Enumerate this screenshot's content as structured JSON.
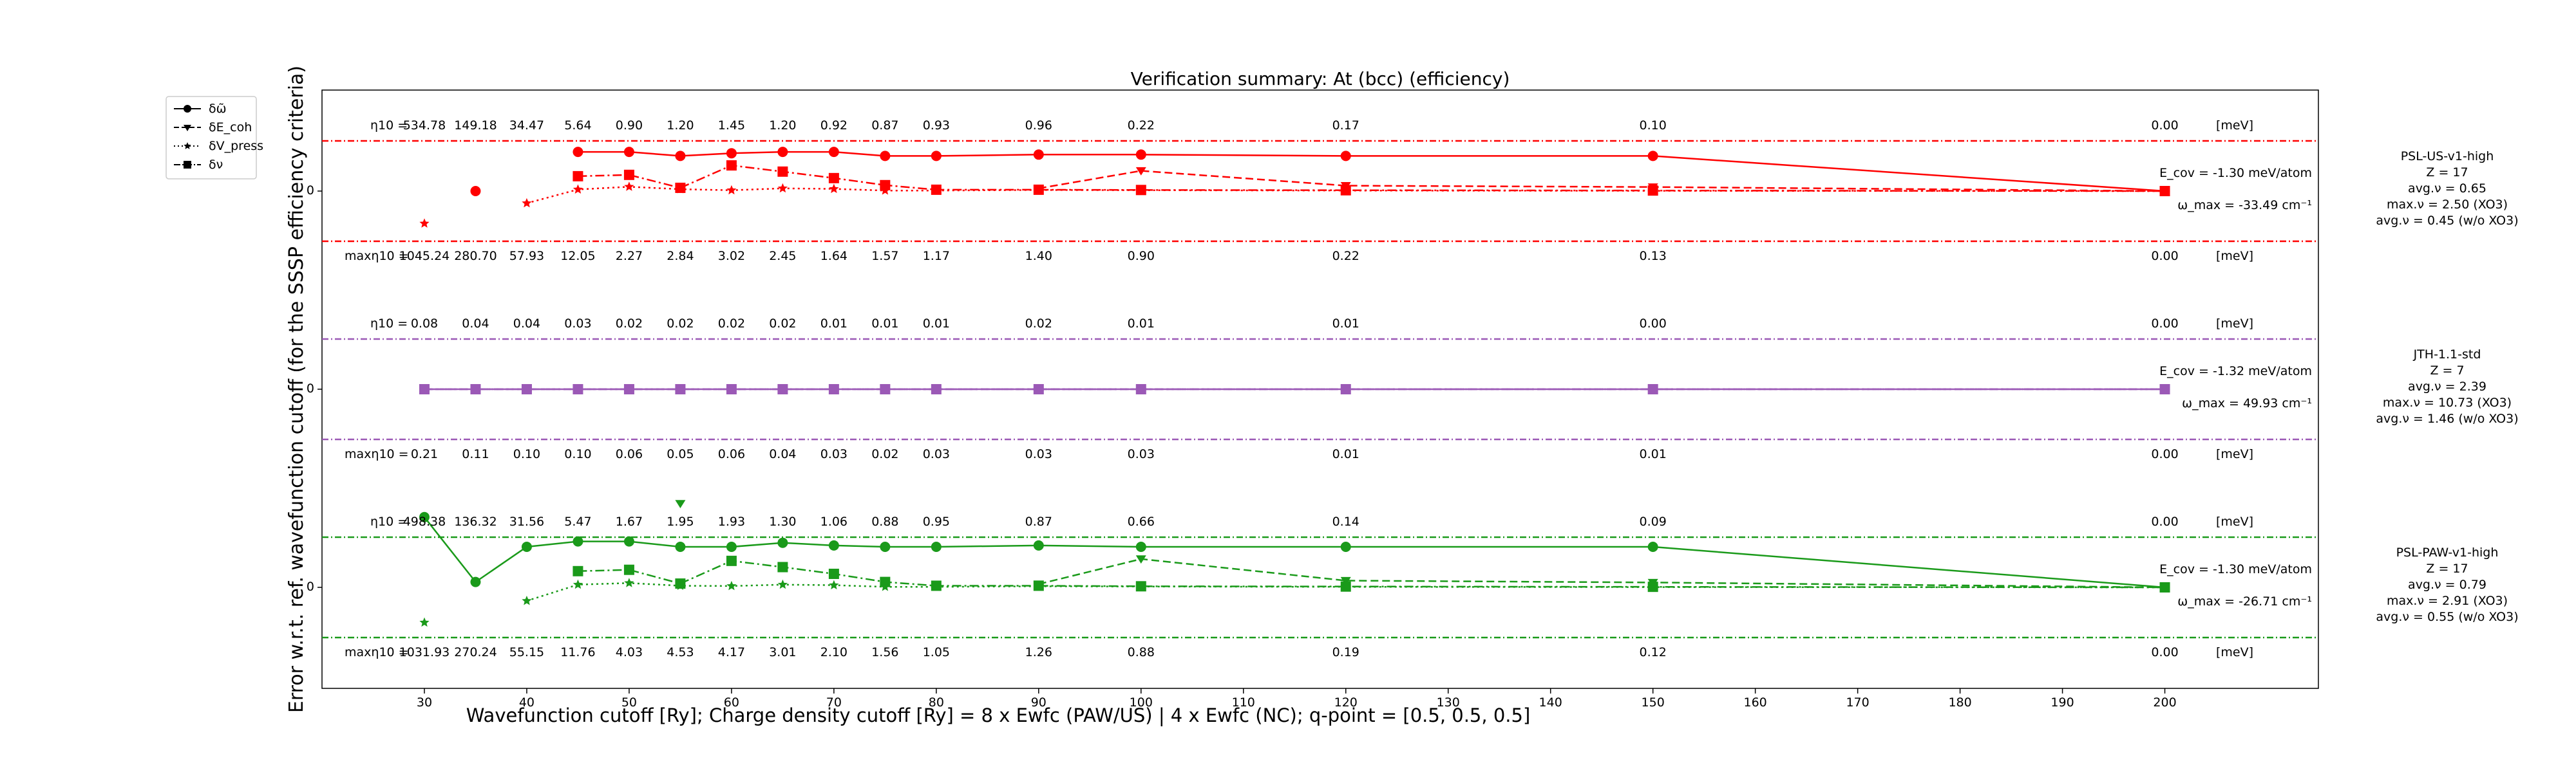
{
  "chart_data": {
    "type": "line",
    "title": "Verification summary: At (bcc) (efficiency)",
    "xlabel": "Wavefunction cutoff [Ry]; Charge density cutoff [Ry] = 8 x Ewfc (PAW/US) | 4 x Ewfc (NC); q-point = [0.5, 0.5, 0.5]",
    "ylabel": "Error w.r.t. ref. wavefunction cutoff (for the SSSP efficiency criteria)",
    "xlim": [
      20,
      215
    ],
    "x_ticks": [
      30,
      40,
      50,
      60,
      70,
      80,
      90,
      100,
      110,
      120,
      130,
      140,
      150,
      160,
      170,
      180,
      190,
      200
    ],
    "ytick_label": "0",
    "grid": false,
    "legend_position": "top-left outside",
    "legend": [
      {
        "label": "δω̃",
        "linestyle": "solid",
        "marker": "circle"
      },
      {
        "label": "δE_coh",
        "linestyle": "dashed",
        "marker": "triangle-down"
      },
      {
        "label": "δV_press",
        "linestyle": "dotted",
        "marker": "star"
      },
      {
        "label": "δν",
        "linestyle": "dashdot",
        "marker": "square"
      }
    ],
    "unit_label": "[meV]",
    "eta_label": "η10 =",
    "max_eta_label": "maxη10 =",
    "panels": [
      {
        "name": "PSL-US-v1-high",
        "color": "#ff0000",
        "info": [
          "PSL-US-v1-high",
          "Z = 17",
          "avg.ν = 0.65",
          "max.ν = 2.50 (XO3)",
          "avg.ν = 0.45 (w/o XO3)"
        ],
        "ecov": "E_cov = -1.30 meV/atom",
        "omega_max": "ω_max = -33.49 cm⁻¹",
        "x": [
          30,
          35,
          40,
          45,
          50,
          55,
          60,
          65,
          70,
          75,
          80,
          90,
          100,
          120,
          150,
          200
        ],
        "eta10": [
          "534.78",
          "149.18",
          "34.47",
          "5.64",
          "0.90",
          "1.20",
          "1.45",
          "1.20",
          "0.92",
          "0.87",
          "0.93",
          "0.96",
          "0.22",
          "0.17",
          "0.10",
          "0.00"
        ],
        "max_eta10": [
          "1045.24",
          "280.70",
          "57.93",
          "12.05",
          "2.27",
          "2.84",
          "3.02",
          "2.45",
          "1.64",
          "1.57",
          "1.17",
          "1.40",
          "0.90",
          "0.22",
          "0.13",
          "0.00"
        ],
        "series": {
          "omega": [
            null,
            0,
            null,
            1.45,
            1.45,
            1.3,
            1.4,
            1.45,
            1.45,
            1.3,
            1.3,
            1.35,
            1.35,
            1.3,
            1.3,
            0
          ],
          "ecoh": [
            null,
            null,
            null,
            null,
            null,
            null,
            null,
            null,
            null,
            null,
            null,
            0.1,
            0.75,
            0.2,
            0.15,
            0
          ],
          "vpress": [
            -1.2,
            null,
            -0.45,
            0.06,
            0.16,
            0.07,
            0.03,
            0.1,
            0.08,
            0.02,
            0.02,
            0.04,
            0.03,
            0.02,
            0.01,
            0
          ],
          "nu": [
            null,
            null,
            null,
            0.55,
            0.6,
            0.12,
            0.95,
            0.72,
            0.48,
            0.22,
            0.05,
            0.05,
            0.04,
            0.03,
            0.02,
            0
          ]
        }
      },
      {
        "name": "JTH-1.1-std",
        "color": "#9b59b6",
        "info": [
          "JTH-1.1-std",
          "Z = 7",
          "avg.ν = 2.39",
          "max.ν = 10.73 (XO3)",
          "avg.ν = 1.46 (w/o XO3)"
        ],
        "ecov": "E_cov = -1.32 meV/atom",
        "omega_max": "ω_max = 49.93 cm⁻¹",
        "x": [
          30,
          35,
          40,
          45,
          50,
          55,
          60,
          65,
          70,
          75,
          80,
          90,
          100,
          120,
          150,
          200
        ],
        "eta10": [
          "0.08",
          "0.04",
          "0.04",
          "0.03",
          "0.02",
          "0.02",
          "0.02",
          "0.02",
          "0.01",
          "0.01",
          "0.01",
          "0.02",
          "0.01",
          "0.01",
          "0.00",
          "0.00"
        ],
        "max_eta10": [
          "0.21",
          "0.11",
          "0.10",
          "0.10",
          "0.06",
          "0.05",
          "0.06",
          "0.04",
          "0.03",
          "0.02",
          "0.03",
          "0.03",
          "0.03",
          "0.01",
          "0.01",
          "0.00"
        ],
        "series": {
          "omega": [
            0,
            0,
            0,
            0,
            0,
            0,
            0,
            0,
            0,
            0,
            0,
            0,
            0,
            0,
            0,
            0
          ],
          "ecoh": [
            0,
            0,
            0,
            0,
            0,
            0,
            0,
            0,
            0,
            0,
            0,
            0,
            0,
            0,
            0,
            0
          ],
          "vpress": [
            0,
            0,
            0,
            0,
            0,
            0,
            0,
            0,
            0,
            0,
            0,
            0,
            0,
            0,
            0,
            0
          ],
          "nu": [
            0,
            0,
            0,
            0,
            0,
            0,
            0,
            0,
            0,
            0,
            0,
            0,
            0,
            0,
            0,
            0
          ]
        }
      },
      {
        "name": "PSL-PAW-v1-high",
        "color": "#1a9a1a",
        "info": [
          "PSL-PAW-v1-high",
          "Z = 17",
          "avg.ν = 0.79",
          "max.ν = 2.91 (XO3)",
          "avg.ν = 0.55 (w/o XO3)"
        ],
        "ecov": "E_cov = -1.30 meV/atom",
        "omega_max": "ω_max = -26.71 cm⁻¹",
        "x": [
          30,
          35,
          40,
          45,
          50,
          55,
          60,
          65,
          70,
          75,
          80,
          90,
          100,
          120,
          150,
          200
        ],
        "eta10": [
          "498.38",
          "136.32",
          "31.56",
          "5.47",
          "1.67",
          "1.95",
          "1.93",
          "1.30",
          "1.06",
          "0.88",
          "0.95",
          "0.87",
          "0.66",
          "0.14",
          "0.09",
          "0.00"
        ],
        "max_eta10": [
          "1031.93",
          "270.24",
          "55.15",
          "11.76",
          "4.03",
          "4.53",
          "4.17",
          "3.01",
          "2.10",
          "1.56",
          "1.05",
          "1.26",
          "0.88",
          "0.19",
          "0.12",
          "0.00"
        ],
        "series": {
          "omega": [
            2.6,
            0.2,
            1.5,
            1.7,
            1.7,
            1.5,
            1.5,
            1.65,
            1.55,
            1.5,
            1.5,
            1.55,
            1.5,
            1.5,
            1.5,
            0
          ],
          "ecoh": [
            null,
            null,
            null,
            null,
            null,
            3.1,
            null,
            null,
            null,
            null,
            null,
            0.12,
            1.05,
            0.25,
            0.18,
            0
          ],
          "vpress": [
            -1.3,
            null,
            -0.5,
            0.1,
            0.16,
            0.06,
            0.05,
            0.1,
            0.08,
            0.02,
            0.02,
            0.04,
            0.03,
            0.02,
            0.01,
            0
          ],
          "nu": [
            null,
            null,
            null,
            0.6,
            0.65,
            0.14,
            0.98,
            0.75,
            0.5,
            0.2,
            0.06,
            0.06,
            0.04,
            0.03,
            0.02,
            0
          ]
        }
      }
    ]
  }
}
